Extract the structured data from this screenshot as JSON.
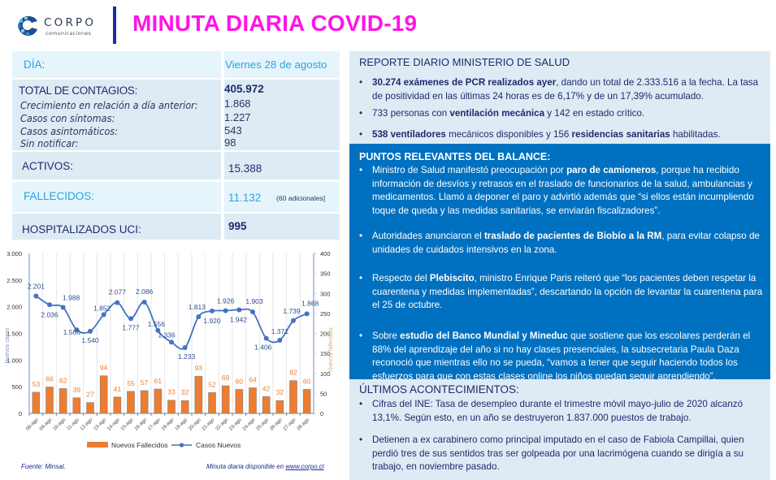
{
  "header": {
    "logo_word": "CORPO",
    "logo_sub": "comunicaciones",
    "title": "MINUTA DIARIA COVID-19",
    "title_color": "#ff14e6"
  },
  "stats": {
    "day_label": "DÍA:",
    "day_value": "Viernes 28 de agosto",
    "total_label": "TOTAL DE CONTAGIOS:",
    "total_value": "405.972",
    "growth_label": "Crecimiento en relación a día anterior:",
    "growth_value": "1.868",
    "symptoms_label": "Casos con síntomas:",
    "symptoms_value": "1.227",
    "asymptomatic_label": "Casos asintomáticos:",
    "asymptomatic_value": "543",
    "unreported_label": "Sin notificar:",
    "unreported_value": "98",
    "active_label": "ACTIVOS:",
    "active_value": "15.388",
    "deaths_label": "FALLECIDOS:",
    "deaths_value": "11.132",
    "deaths_note": "(60 adicionales]",
    "icu_label": "HOSPITALIZADOS UCI:",
    "icu_value": "995"
  },
  "chart_data": {
    "type": "bar+line",
    "title": "",
    "categories": [
      "08-ago",
      "09-ago",
      "10-ago",
      "11-ago",
      "12-ago",
      "13-ago",
      "14-ago",
      "15-ago",
      "16-ago",
      "17-ago",
      "18-ago",
      "19-ago",
      "20-ago",
      "21-ago",
      "22-ago",
      "23-ago",
      "24-ago",
      "25-ago",
      "26-ago",
      "27-ago",
      "28-ago"
    ],
    "series": [
      {
        "name": "Nuevos Fallecidos",
        "type": "bar",
        "axis": "right",
        "color": "#ed7d31",
        "values": [
          53,
          66,
          62,
          39,
          27,
          94,
          41,
          55,
          57,
          61,
          33,
          32,
          93,
          52,
          69,
          60,
          64,
          42,
          32,
          82,
          60
        ]
      },
      {
        "name": "Casos Nuevos",
        "type": "line",
        "axis": "left",
        "color": "#4472c4",
        "values": [
          2201,
          2036,
          1988,
          1566,
          1540,
          1852,
          2077,
          1777,
          2086,
          1556,
          1336,
          1233,
          1813,
          1920,
          1926,
          1942,
          1903,
          1406,
          1371,
          1739,
          1868
        ]
      }
    ],
    "line_labels": [
      "2.201",
      "2.036",
      "1.988",
      "1.566",
      "1.540",
      "1.852",
      "2.077",
      "1.777",
      "2.086",
      "1.556",
      "1.336",
      "1.233",
      "1.813",
      "1.920",
      "1.926",
      "1.942",
      "1.903",
      "1.406",
      "1.371",
      "1.739",
      "1.868"
    ],
    "ylabel_left": "Nuevos casos",
    "ylabel_right": "Nuevos fallecidos",
    "ylim_left": [
      0,
      3000
    ],
    "ylim_right": [
      0,
      400
    ],
    "left_ticks": [
      "0",
      "500",
      "1.000",
      "1.500",
      "2.000",
      "2.500",
      "3.000"
    ],
    "right_ticks": [
      "0",
      "50",
      "100",
      "150",
      "200",
      "250",
      "300",
      "350",
      "400"
    ],
    "grid": "vertical",
    "legend_position": "bottom"
  },
  "footer": {
    "source": "Fuente: Minsal.",
    "availability_prefix": "Minuta diaria disponible en ",
    "availability_link": "www.corpo.cl"
  },
  "report": {
    "title": "REPORTE DIARIO MINISTERIO DE SALUD",
    "items": [
      {
        "bold": "30.274 exámenes de PCR realizados ayer",
        "text": ", dando un total de 2.333.516 a la fecha. La tasa de positividad en las últimas 24 horas es de 6,17% y de un 17,39% acumulado."
      },
      {
        "pre": "733 personas con ",
        "bold": "ventilación mecánica",
        "text": " y 142  en estado crítico."
      },
      {
        "bold": "538 ventiladores",
        "mid": " mecánicos disponibles y 156 ",
        "bold2": "residencias sanitarias",
        "text": " habilitadas."
      }
    ]
  },
  "balance": {
    "title": "PUNTOS RELEVANTES DEL BALANCE:",
    "items": [
      {
        "pre": "Ministro de Salud manifestó preocupación por ",
        "bold": "paro de camioneros",
        "text": ", porque ha recibido información de desvíos y retrasos en el traslado de funcionarios de la salud, ambulancias y medicamentos. Llamó a deponer el paro y advirtió además que “si ellos están incumpliendo toque de queda y las medidas sanitarias, se enviarán fiscalizadores”."
      },
      {
        "pre": "Autoridades anunciaron el ",
        "bold": "traslado de pacientes de Biobío a la RM",
        "text": ", para evitar colapso de unidades de cuidados intensivos en la zona."
      },
      {
        "pre": "Respecto del ",
        "bold": "Plebiscito",
        "text": ", ministro Enrique Paris reiteró que “los pacientes deben respetar la cuarentena y medidas implementadas”, descartando la opción de levantar la cuarentena para el 25 de octubre."
      },
      {
        "pre": "Sobre ",
        "bold": "estudio del Banco Mundial y Mineduc",
        "text": " que sostiene que los escolares perderán el 88% del aprendizaje del año si no hay clases presenciales, la subsecretaria Paula Daza reconoció que mientras ello no se pueda, “vamos a tener que seguir haciendo todos los esfuerzos para que con estas clases online los niños puedan seguir aprendiendo”."
      }
    ]
  },
  "latest": {
    "title": "ÚLTIMOS ACONTECIMIENTOS:",
    "items": [
      {
        "text": "Cifras del INE: Tasa de desempleo durante el trimestre móvil mayo-julio de 2020 alcanzó 13,1%. Según esto, en un año se destruyeron 1.837.000 puestos de trabajo."
      },
      {
        "text": "Detienen a ex carabinero como principal imputado en el caso de Fabiola Campillai, quien perdió tres de sus sentidos tras ser golpeada por una lacrimógena cuando se dirigía a su trabajo, en noviembre pasado."
      }
    ]
  },
  "colors": {
    "panel_light": "#deebf5",
    "panel_blue": "#0070c0",
    "navy_text": "#1f2a6b",
    "accent_cyan": "#29a3e0",
    "bar_orange": "#ed7d31",
    "line_blue": "#4472c4"
  }
}
